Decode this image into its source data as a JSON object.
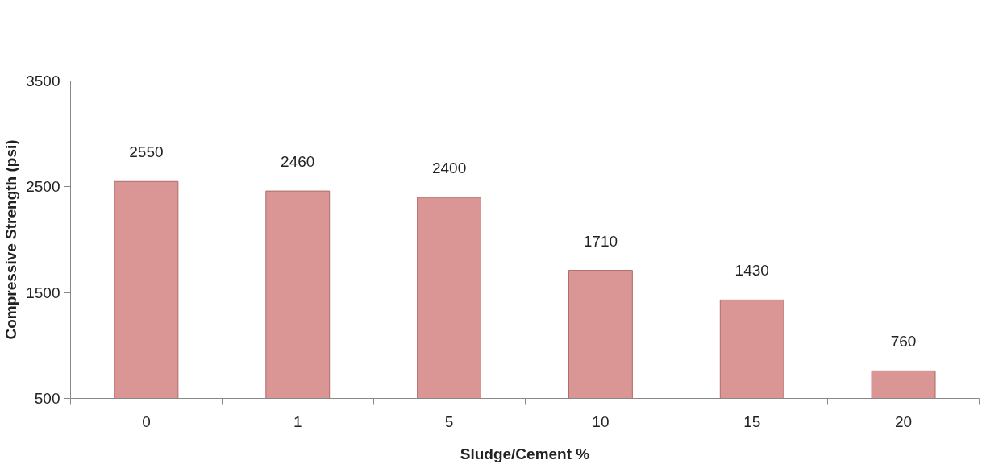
{
  "chart_data": {
    "type": "bar",
    "xlabel": "Sludge/Cement %",
    "ylabel": "Compressive Strength (psi)",
    "categories": [
      "0",
      "1",
      "5",
      "10",
      "15",
      "20"
    ],
    "values": [
      2550,
      2460,
      2400,
      1710,
      1430,
      760
    ],
    "color": "#d99694",
    "ylim": [
      500,
      3500
    ],
    "yticks": [
      500,
      1500,
      2500,
      3500
    ],
    "data_labels": true,
    "grid": false
  }
}
